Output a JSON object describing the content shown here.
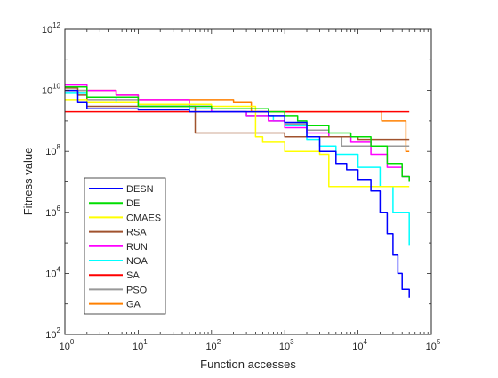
{
  "chart_data": {
    "type": "line",
    "xlabel": "Function accesses",
    "ylabel": "Fitness value",
    "xscale": "log",
    "yscale": "log",
    "xlim": [
      1,
      100000
    ],
    "ylim": [
      100,
      1000000000000
    ],
    "x_ticks": [
      {
        "value": 1,
        "base": "10",
        "exp": "0"
      },
      {
        "value": 10,
        "base": "10",
        "exp": "1"
      },
      {
        "value": 100,
        "base": "10",
        "exp": "2"
      },
      {
        "value": 1000,
        "base": "10",
        "exp": "3"
      },
      {
        "value": 10000,
        "base": "10",
        "exp": "4"
      },
      {
        "value": 100000,
        "base": "10",
        "exp": "5"
      }
    ],
    "y_ticks": [
      {
        "value": 100,
        "base": "10",
        "exp": "2"
      },
      {
        "value": 10000,
        "base": "10",
        "exp": "4"
      },
      {
        "value": 1000000,
        "base": "10",
        "exp": "6"
      },
      {
        "value": 100000000,
        "base": "10",
        "exp": "8"
      },
      {
        "value": 10000000000,
        "base": "10",
        "exp": "10"
      },
      {
        "value": 1000000000000,
        "base": "10",
        "exp": "12"
      }
    ],
    "grid": false,
    "legend_position": "lower-left",
    "series": [
      {
        "name": "DESN",
        "color": "#0000ff",
        "x": [
          1,
          1.5,
          2,
          5,
          10,
          50,
          200,
          600,
          1000,
          2000,
          3000,
          5000,
          7000,
          10000,
          15000,
          20000,
          25000,
          30000,
          35000,
          40000,
          50000
        ],
        "y": [
          10000000000,
          4000000000,
          2500000000,
          2500000000,
          2300000000,
          2000000000,
          2000000000,
          1500000000,
          900000000,
          300000000,
          100000000,
          40000000,
          25000000,
          12000000,
          5000000,
          1000000,
          200000,
          40000,
          10000,
          3000,
          1600
        ]
      },
      {
        "name": "DE",
        "color": "#00dd00",
        "x": [
          1,
          2,
          10,
          100,
          300,
          600,
          1000,
          1500,
          2000,
          4000,
          8000,
          15000,
          25000,
          40000,
          50000
        ],
        "y": [
          13000000000,
          6000000000,
          3000000000,
          2500000000,
          2500000000,
          2000000000,
          1500000000,
          1000000000,
          700000000,
          400000000,
          300000000,
          150000000,
          40000000,
          15000000,
          10000000
        ]
      },
      {
        "name": "CMAES",
        "color": "#ffff00",
        "x": [
          1,
          2,
          10,
          100,
          400,
          500,
          1000,
          1500,
          3000,
          4000,
          5000,
          10000,
          50000
        ],
        "y": [
          5000000000,
          4000000000,
          3500000000,
          3000000000,
          300000000,
          200000000,
          100000000,
          100000000,
          80000000,
          7000000,
          7000000,
          7000000,
          7000000
        ]
      },
      {
        "name": "RSA",
        "color": "#a0522d",
        "x": [
          1,
          1.5,
          2,
          10,
          55,
          60,
          500,
          1000,
          3000,
          5000,
          10000,
          50000
        ],
        "y": [
          12000000000,
          7000000000,
          3000000000,
          3000000000,
          3000000000,
          400000000,
          400000000,
          300000000,
          300000000,
          300000000,
          250000000,
          250000000
        ]
      },
      {
        "name": "RUN",
        "color": "#ff00ff",
        "x": [
          1,
          2,
          5,
          10,
          50,
          100,
          300,
          600,
          1000,
          2000,
          4000,
          8000,
          15000,
          25000,
          40000,
          50000
        ],
        "y": [
          15000000000,
          10000000000,
          7000000000,
          5000000000,
          3000000000,
          2000000000,
          1500000000,
          1000000000,
          600000000,
          400000000,
          300000000,
          200000000,
          80000000,
          30000000,
          15000000,
          10000000
        ]
      },
      {
        "name": "NOA",
        "color": "#00ffff",
        "x": [
          1,
          2,
          5,
          10,
          50,
          100,
          300,
          700,
          1000,
          2000,
          3000,
          5000,
          10000,
          20000,
          30000,
          50000
        ],
        "y": [
          8000000000,
          6000000000,
          4000000000,
          3000000000,
          2500000000,
          2000000000,
          1500000000,
          1000000000,
          700000000,
          250000000,
          150000000,
          80000000,
          30000000,
          7000000,
          1000000,
          80000
        ]
      },
      {
        "name": "SA",
        "color": "#ff0000",
        "x": [
          1,
          50000
        ],
        "y": [
          2000000000,
          2000000000
        ]
      },
      {
        "name": "PSO",
        "color": "#999999",
        "x": [
          1,
          2,
          10,
          50,
          100,
          300,
          600,
          1000,
          2000,
          4000,
          6000,
          10000,
          20000,
          30000,
          50000
        ],
        "y": [
          10000000000,
          5000000000,
          3000000000,
          2500000000,
          2000000000,
          1500000000,
          1000000000,
          800000000,
          500000000,
          300000000,
          150000000,
          150000000,
          150000000,
          150000000,
          150000000
        ]
      },
      {
        "name": "GA",
        "color": "#ff8000",
        "x": [
          1,
          5,
          10,
          100,
          200,
          300,
          350,
          1000,
          10000,
          20000,
          21000,
          40000,
          45000,
          50000
        ],
        "y": [
          10000000000,
          7000000000,
          5000000000,
          5000000000,
          4000000000,
          4000000000,
          2000000000,
          2000000000,
          2000000000,
          2000000000,
          1000000000,
          1000000000,
          100000000,
          100000000
        ]
      }
    ]
  }
}
